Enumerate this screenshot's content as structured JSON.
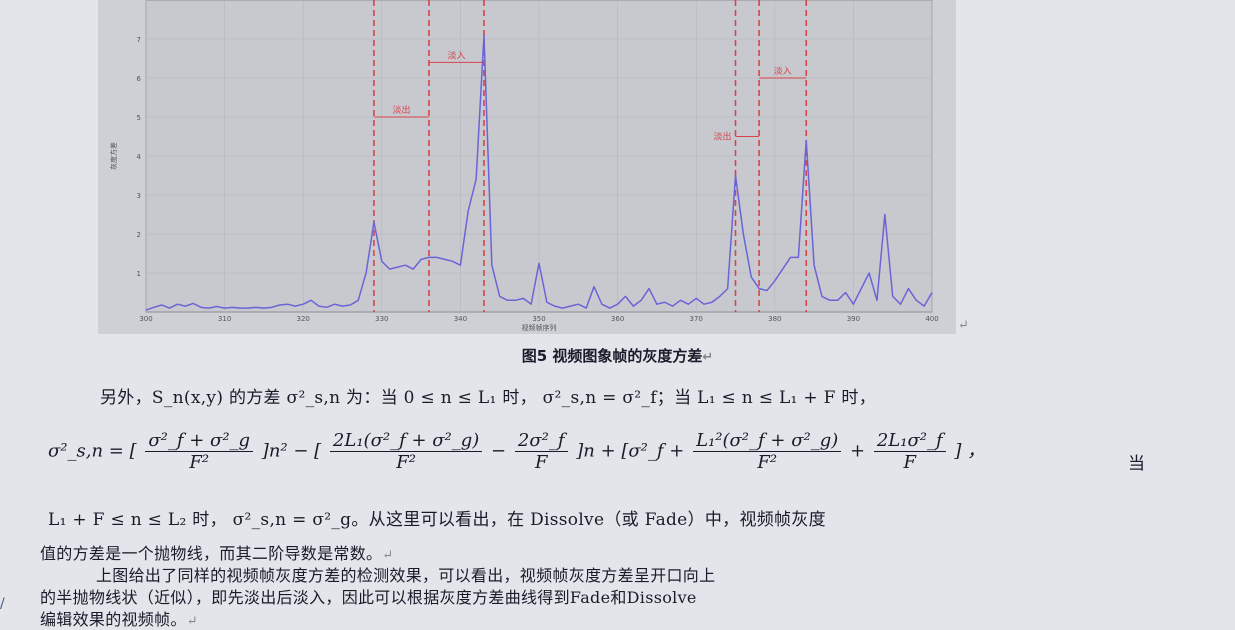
{
  "chart_data": {
    "type": "line",
    "title": "",
    "xlabel": "视频帧序列",
    "ylabel": "灰度方差",
    "xlim": [
      300,
      400
    ],
    "ylim": [
      0,
      8
    ],
    "x_ticks": [
      "300",
      "310",
      "320",
      "330",
      "340",
      "350",
      "360",
      "370",
      "380",
      "390",
      "400"
    ],
    "y_ticks": [
      "1",
      "2",
      "3",
      "4",
      "5",
      "6",
      "7"
    ],
    "grid": true,
    "series": [
      {
        "color": "#6a64d6",
        "x": [
          300,
          301,
          302,
          303,
          304,
          305,
          306,
          307,
          308,
          309,
          310,
          311,
          312,
          313,
          314,
          315,
          316,
          317,
          318,
          319,
          320,
          321,
          322,
          323,
          324,
          325,
          326,
          327,
          328,
          329,
          330,
          331,
          332,
          333,
          334,
          335,
          336,
          337,
          338,
          339,
          340,
          341,
          342,
          343,
          344,
          345,
          346,
          347,
          348,
          349,
          350,
          351,
          352,
          353,
          354,
          355,
          356,
          357,
          358,
          359,
          360,
          361,
          362,
          363,
          364,
          365,
          366,
          367,
          368,
          369,
          370,
          371,
          372,
          373,
          374,
          375,
          376,
          377,
          378,
          379,
          380,
          381,
          382,
          383,
          384,
          385,
          386,
          387,
          388,
          389,
          390,
          391,
          392,
          393,
          394,
          395,
          396,
          397,
          398,
          399,
          400
        ],
        "y": [
          0.05,
          0.12,
          0.18,
          0.1,
          0.2,
          0.15,
          0.22,
          0.12,
          0.1,
          0.14,
          0.1,
          0.12,
          0.1,
          0.1,
          0.12,
          0.1,
          0.12,
          0.18,
          0.2,
          0.15,
          0.2,
          0.3,
          0.15,
          0.12,
          0.2,
          0.15,
          0.18,
          0.3,
          1.0,
          2.3,
          1.3,
          1.1,
          1.15,
          1.2,
          1.1,
          1.35,
          1.4,
          1.4,
          1.35,
          1.3,
          1.2,
          2.6,
          3.4,
          7.1,
          1.2,
          0.4,
          0.3,
          0.3,
          0.35,
          0.2,
          1.25,
          0.25,
          0.15,
          0.1,
          0.15,
          0.2,
          0.1,
          0.65,
          0.2,
          0.1,
          0.2,
          0.4,
          0.15,
          0.3,
          0.6,
          0.2,
          0.25,
          0.15,
          0.3,
          0.2,
          0.35,
          0.2,
          0.25,
          0.4,
          0.6,
          3.5,
          2.0,
          0.9,
          0.6,
          0.55,
          0.8,
          1.1,
          1.4,
          1.4,
          4.4,
          1.2,
          0.4,
          0.3,
          0.3,
          0.5,
          0.2,
          0.6,
          1.0,
          0.3,
          2.5,
          0.4,
          0.2,
          0.6,
          0.3,
          0.15,
          0.5
        ]
      }
    ],
    "markers": [
      329,
      336,
      343,
      375,
      378,
      384
    ],
    "annotations": [
      {
        "text": "淡出",
        "from": 329,
        "to": 336,
        "y": 5.0,
        "side": "inside"
      },
      {
        "text": "淡入",
        "from": 336,
        "to": 343,
        "y": 6.4,
        "side": "inside"
      },
      {
        "text": "淡出",
        "from": 375,
        "to": 378,
        "y": 4.5,
        "side": "left"
      },
      {
        "text": "淡入",
        "from": 378,
        "to": 384,
        "y": 6.0,
        "side": "inside"
      }
    ]
  },
  "caption": "图5   视频图象帧的灰度方差",
  "text": {
    "line1": "另外，S_n(x,y) 的方差 σ²_s,n 为：当 0 ≤ n ≤ L₁ 时， σ²_s,n = σ²_f；当 L₁ ≤ n ≤ L₁ + F 时，",
    "eq_lhs": "σ²_s,n = [",
    "eq_f1_num": "σ²_f + σ²_g",
    "eq_f1_den": "F²",
    "eq_mid1": "]n² − [",
    "eq_f2_num": "2L₁(σ²_f + σ²_g)",
    "eq_f2_den": "F²",
    "eq_minus": "−",
    "eq_f3_num": "2σ²_f",
    "eq_f3_den": "F",
    "eq_mid2": "]n + [σ²_f +",
    "eq_f4_num": "L₁²(σ²_f + σ²_g)",
    "eq_f4_den": "F²",
    "eq_plus": "+",
    "eq_f5_num": "2L₁σ²_f",
    "eq_f5_den": "F",
    "eq_end": "]   ，",
    "eq_dang": "当",
    "line3": "L₁ + F ≤ n ≤ L₂ 时， σ²_s,n = σ²_g。从这里可以看出，在 Dissolve（或 Fade）中，视频帧灰度",
    "line4": "值的方差是一个抛物线，而其二阶导数是常数。",
    "line5": "上图给出了同样的视频帧灰度方差的检测效果，可以看出，视频帧灰度方差呈开口向上",
    "line6": "的半抛物线状（近似），即先淡出后淡入，因此可以根据灰度方差曲线得到Fade和Dissolve",
    "line7": "编辑效果的视频帧。",
    "return_mark": "↵",
    "margin_mark": "/"
  }
}
